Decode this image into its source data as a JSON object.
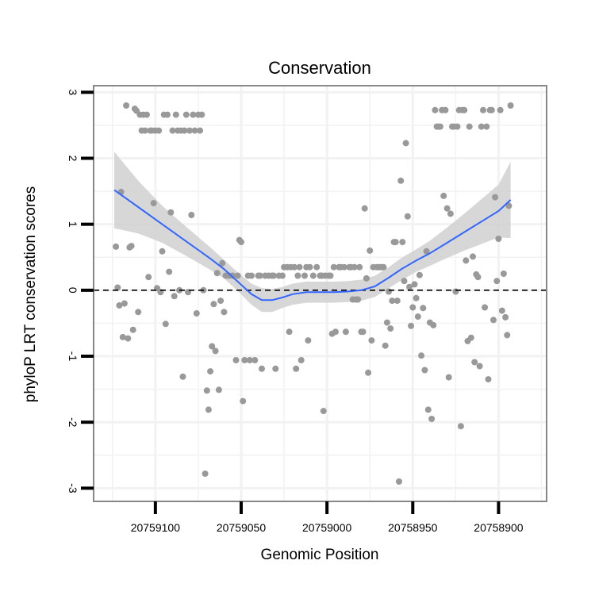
{
  "chart_data": {
    "type": "scatter",
    "title": "Conservation",
    "xlabel": "Genomic Position",
    "ylabel": "phyloP LRT conservation scores",
    "xlim": [
      20759136,
      20758872
    ],
    "ylim": [
      -3.2,
      3.1
    ],
    "x_ticks": [
      {
        "value": 20759100,
        "label": "20759100"
      },
      {
        "value": 20759050,
        "label": "20759050"
      },
      {
        "value": 20759000,
        "label": "20759000"
      },
      {
        "value": 20758950,
        "label": "20758950"
      },
      {
        "value": 20758900,
        "label": "20758900"
      }
    ],
    "y_ticks": [
      {
        "value": 3,
        "label": "3"
      },
      {
        "value": 2,
        "label": "2"
      },
      {
        "value": 1,
        "label": "1"
      },
      {
        "value": 0,
        "label": "0"
      },
      {
        "value": -1,
        "label": "-1"
      },
      {
        "value": -2,
        "label": "-2"
      },
      {
        "value": -3,
        "label": "-3"
      }
    ],
    "reference_line": {
      "y": 0,
      "style": "dashed"
    },
    "colors": {
      "points": "#999999",
      "smooth": "#3366ff",
      "band": "#d0d0d0",
      "grid": "#f2f2f2",
      "border": "#888888"
    },
    "points": [
      [
        20759123,
        0.66
      ],
      [
        20759122,
        0.04
      ],
      [
        20759121,
        -0.23
      ],
      [
        20759120,
        1.49
      ],
      [
        20759119,
        -0.71
      ],
      [
        20759118,
        -0.2
      ],
      [
        20759117,
        2.8
      ],
      [
        20759116,
        -0.73
      ],
      [
        20759115,
        0.65
      ],
      [
        20759114,
        0.67
      ],
      [
        20759113,
        -0.6
      ],
      [
        20759112,
        2.75
      ],
      [
        20759111,
        2.72
      ],
      [
        20759110,
        -0.33
      ],
      [
        20759109,
        2.66
      ],
      [
        20759108,
        2.42
      ],
      [
        20759107,
        2.66
      ],
      [
        20759106,
        2.42
      ],
      [
        20759105,
        2.66
      ],
      [
        20759104,
        0.2
      ],
      [
        20759103,
        2.42
      ],
      [
        20759102,
        2.42
      ],
      [
        20759101,
        1.32
      ],
      [
        20759100,
        2.42
      ],
      [
        20759099,
        0.03
      ],
      [
        20759098,
        2.42
      ],
      [
        20759097,
        -0.03
      ],
      [
        20759096,
        0.59
      ],
      [
        20759095,
        2.66
      ],
      [
        20759094,
        -0.51
      ],
      [
        20759093,
        2.66
      ],
      [
        20759092,
        0.28
      ],
      [
        20759091,
        1.18
      ],
      [
        20759090,
        2.42
      ],
      [
        20759089,
        -0.09
      ],
      [
        20759088,
        2.66
      ],
      [
        20759087,
        2.42
      ],
      [
        20759086,
        0.0
      ],
      [
        20759085,
        2.42
      ],
      [
        20759084,
        -1.31
      ],
      [
        20759083,
        2.42
      ],
      [
        20759082,
        2.66
      ],
      [
        20759081,
        -0.03
      ],
      [
        20759080,
        2.42
      ],
      [
        20759079,
        1.14
      ],
      [
        20759078,
        2.66
      ],
      [
        20759077,
        2.42
      ],
      [
        20759076,
        -0.35
      ],
      [
        20759075,
        2.66
      ],
      [
        20759074,
        2.42
      ],
      [
        20759073,
        2.66
      ],
      [
        20759072,
        0.0
      ],
      [
        20759071,
        -2.78
      ],
      [
        20759070,
        -1.52
      ],
      [
        20759069,
        -1.81
      ],
      [
        20759068,
        -1.23
      ],
      [
        20759067,
        -0.85
      ],
      [
        20759066,
        -0.21
      ],
      [
        20759065,
        -0.92
      ],
      [
        20759064,
        0.26
      ],
      [
        20759063,
        -1.51
      ],
      [
        20759062,
        -0.16
      ],
      [
        20759061,
        0.41
      ],
      [
        20759060,
        -0.33
      ],
      [
        20759059,
        0.22
      ],
      [
        20759057,
        0.22
      ],
      [
        20759055,
        0.22
      ],
      [
        20759053,
        -1.06
      ],
      [
        20759052,
        0.22
      ],
      [
        20759051,
        0.76
      ],
      [
        20759050,
        0.73
      ],
      [
        20759049,
        -1.68
      ],
      [
        20759048,
        -1.06
      ],
      [
        20759046,
        0.22
      ],
      [
        20759045,
        -1.06
      ],
      [
        20759044,
        0.22
      ],
      [
        20759042,
        -1.06
      ],
      [
        20759040,
        0.22
      ],
      [
        20759039,
        0.22
      ],
      [
        20759038,
        -1.19
      ],
      [
        20759036,
        0.22
      ],
      [
        20759034,
        0.22
      ],
      [
        20759032,
        0.22
      ],
      [
        20759031,
        0.22
      ],
      [
        20759030,
        -1.19
      ],
      [
        20759028,
        0.22
      ],
      [
        20759026,
        0.22
      ],
      [
        20759025,
        0.35
      ],
      [
        20759023,
        0.35
      ],
      [
        20759022,
        -0.63
      ],
      [
        20759021,
        0.35
      ],
      [
        20759019,
        0.35
      ],
      [
        20759018,
        -1.19
      ],
      [
        20759017,
        0.22
      ],
      [
        20759016,
        0.35
      ],
      [
        20759015,
        -1.06
      ],
      [
        20759013,
        0.22
      ],
      [
        20759012,
        0.35
      ],
      [
        20759011,
        -0.76
      ],
      [
        20759010,
        0.35
      ],
      [
        20759008,
        0.22
      ],
      [
        20759006,
        0.35
      ],
      [
        20759004,
        0.22
      ],
      [
        20759003,
        0.22
      ],
      [
        20759002,
        -1.83
      ],
      [
        20759001,
        0.22
      ],
      [
        20758999,
        0.22
      ],
      [
        20758998,
        0.22
      ],
      [
        20758997,
        -0.66
      ],
      [
        20758996,
        0.35
      ],
      [
        20758995,
        -0.63
      ],
      [
        20758993,
        0.35
      ],
      [
        20758992,
        0.35
      ],
      [
        20758990,
        0.35
      ],
      [
        20758989,
        -0.63
      ],
      [
        20758987,
        0.35
      ],
      [
        20758986,
        0.35
      ],
      [
        20758985,
        -0.14
      ],
      [
        20758984,
        0.35
      ],
      [
        20758983,
        -0.14
      ],
      [
        20758982,
        -0.14
      ],
      [
        20758981,
        0.35
      ],
      [
        20758980,
        -0.63
      ],
      [
        20758979,
        -0.63
      ],
      [
        20758978,
        1.24
      ],
      [
        20758977,
        0.18
      ],
      [
        20758976,
        -1.25
      ],
      [
        20758975,
        0.6
      ],
      [
        20758974,
        -0.76
      ],
      [
        20758973,
        0.35
      ],
      [
        20758971,
        0.35
      ],
      [
        20758970,
        0.35
      ],
      [
        20758969,
        0.35
      ],
      [
        20758968,
        0.35
      ],
      [
        20758967,
        0.35
      ],
      [
        20758966,
        -0.84
      ],
      [
        20758965,
        -0.49
      ],
      [
        20758964,
        -0.02
      ],
      [
        20758963,
        -0.58
      ],
      [
        20758962,
        -0.16
      ],
      [
        20758961,
        0.73
      ],
      [
        20758960,
        0.73
      ],
      [
        20758959,
        -0.16
      ],
      [
        20758958,
        -2.9
      ],
      [
        20758957,
        1.66
      ],
      [
        20758956,
        0.73
      ],
      [
        20758955,
        0.14
      ],
      [
        20758954,
        2.23
      ],
      [
        20758953,
        1.12
      ],
      [
        20758952,
        0.05
      ],
      [
        20758951,
        -0.54
      ],
      [
        20758950,
        -0.26
      ],
      [
        20758949,
        0.09
      ],
      [
        20758948,
        -0.12
      ],
      [
        20758947,
        -0.4
      ],
      [
        20758946,
        0.23
      ],
      [
        20758945,
        -0.99
      ],
      [
        20758944,
        -0.27
      ],
      [
        20758943,
        -1.21
      ],
      [
        20758942,
        0.59
      ],
      [
        20758941,
        -1.81
      ],
      [
        20758940,
        -0.49
      ],
      [
        20758939,
        -1.95
      ],
      [
        20758938,
        -0.53
      ],
      [
        20758937,
        2.73
      ],
      [
        20758936,
        2.48
      ],
      [
        20758935,
        2.48
      ],
      [
        20758934,
        2.48
      ],
      [
        20758933,
        2.73
      ],
      [
        20758932,
        1.43
      ],
      [
        20758931,
        2.73
      ],
      [
        20758930,
        1.24
      ],
      [
        20758929,
        -1.32
      ],
      [
        20758928,
        1.16
      ],
      [
        20758927,
        2.48
      ],
      [
        20758926,
        2.48
      ],
      [
        20758925,
        -0.02
      ],
      [
        20758924,
        2.48
      ],
      [
        20758923,
        2.73
      ],
      [
        20758922,
        -2.06
      ],
      [
        20758921,
        2.73
      ],
      [
        20758920,
        2.73
      ],
      [
        20758919,
        0.45
      ],
      [
        20758918,
        -0.77
      ],
      [
        20758917,
        2.48
      ],
      [
        20758916,
        -0.72
      ],
      [
        20758915,
        0.51
      ],
      [
        20758914,
        -1.09
      ],
      [
        20758913,
        0.24
      ],
      [
        20758912,
        0.2
      ],
      [
        20758911,
        -1.15
      ],
      [
        20758910,
        2.48
      ],
      [
        20758909,
        2.73
      ],
      [
        20758908,
        -0.26
      ],
      [
        20758907,
        2.48
      ],
      [
        20758906,
        -1.35
      ],
      [
        20758905,
        2.73
      ],
      [
        20758904,
        2.73
      ],
      [
        20758903,
        -0.45
      ],
      [
        20758902,
        1.41
      ],
      [
        20758901,
        0.14
      ],
      [
        20758900,
        0.78
      ],
      [
        20758899,
        2.73
      ],
      [
        20758898,
        -0.31
      ],
      [
        20758897,
        0.25
      ],
      [
        20758896,
        -0.41
      ],
      [
        20758895,
        -0.68
      ],
      [
        20758894,
        1.28
      ],
      [
        20758893,
        2.8
      ]
    ],
    "smooth": {
      "x": [
        20759124,
        20759110,
        20759096,
        20759082,
        20759068,
        20759060,
        20759052,
        20759044,
        20759038,
        20759032,
        20759026,
        20759020,
        20759012,
        20759004,
        20758996,
        20758988,
        20758980,
        20758972,
        20758964,
        20758956,
        20758948,
        20758940,
        20758930,
        20758920,
        20758910,
        20758900,
        20758893
      ],
      "y": [
        1.52,
        1.26,
        1.0,
        0.74,
        0.48,
        0.32,
        0.13,
        -0.06,
        -0.15,
        -0.15,
        -0.11,
        -0.06,
        -0.03,
        -0.03,
        -0.03,
        -0.02,
        0.0,
        0.06,
        0.19,
        0.33,
        0.45,
        0.56,
        0.72,
        0.88,
        1.04,
        1.2,
        1.37
      ],
      "upper": [
        2.1,
        1.66,
        1.28,
        0.96,
        0.65,
        0.46,
        0.27,
        0.1,
        0.03,
        0.02,
        0.05,
        0.1,
        0.13,
        0.13,
        0.13,
        0.14,
        0.16,
        0.22,
        0.35,
        0.5,
        0.62,
        0.75,
        0.95,
        1.16,
        1.38,
        1.6,
        1.95
      ],
      "lower": [
        0.94,
        0.86,
        0.72,
        0.52,
        0.31,
        0.18,
        -0.01,
        -0.22,
        -0.33,
        -0.33,
        -0.27,
        -0.22,
        -0.19,
        -0.19,
        -0.19,
        -0.18,
        -0.16,
        -0.1,
        0.03,
        0.16,
        0.28,
        0.37,
        0.49,
        0.6,
        0.7,
        0.8,
        0.79
      ]
    }
  }
}
